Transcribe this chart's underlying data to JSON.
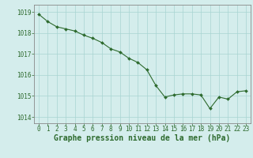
{
  "x": [
    0,
    1,
    2,
    3,
    4,
    5,
    6,
    7,
    8,
    9,
    10,
    11,
    12,
    13,
    14,
    15,
    16,
    17,
    18,
    19,
    20,
    21,
    22,
    23
  ],
  "y": [
    1018.9,
    1018.55,
    1018.3,
    1018.2,
    1018.1,
    1017.9,
    1017.75,
    1017.55,
    1017.25,
    1017.1,
    1016.8,
    1016.6,
    1016.25,
    1015.5,
    1014.95,
    1015.05,
    1015.1,
    1015.1,
    1015.05,
    1014.4,
    1014.95,
    1014.85,
    1015.2,
    1015.25
  ],
  "line_color": "#2d6a2d",
  "marker_color": "#2d6a2d",
  "bg_color": "#d4edec",
  "grid_color": "#a8d4d2",
  "title": "Graphe pression niveau de la mer (hPa)",
  "ylabel_ticks": [
    1014,
    1015,
    1016,
    1017,
    1018,
    1019
  ],
  "xlabel_ticks": [
    0,
    1,
    2,
    3,
    4,
    5,
    6,
    7,
    8,
    9,
    10,
    11,
    12,
    13,
    14,
    15,
    16,
    17,
    18,
    19,
    20,
    21,
    22,
    23
  ],
  "ylim": [
    1013.7,
    1019.35
  ],
  "xlim": [
    -0.5,
    23.5
  ],
  "title_fontsize": 7.0,
  "tick_fontsize": 5.5,
  "title_color": "#2d6a2d",
  "tick_color": "#2d6a2d",
  "spine_color": "#888888"
}
